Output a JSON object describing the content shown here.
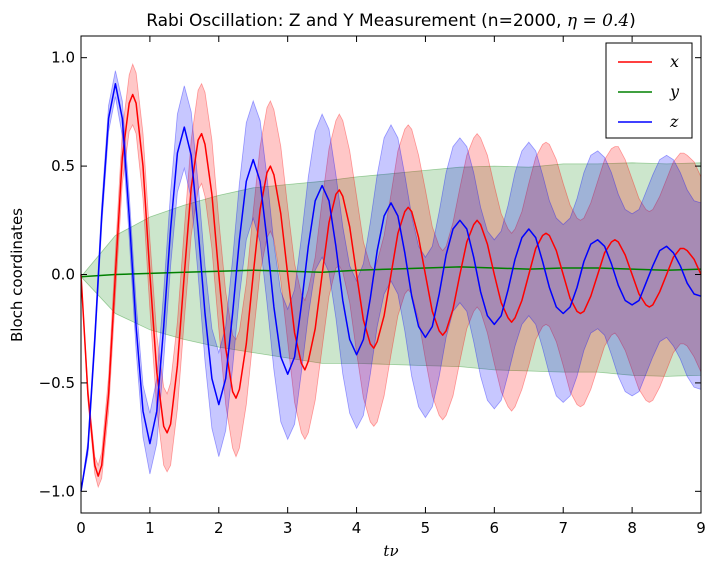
{
  "chart_data": {
    "type": "line",
    "title": {
      "prefix": "Rabi Oscillation: Z and Y Measurement (n=2000, ",
      "math": "η = 0.4",
      "suffix": ")"
    },
    "xlabel": "tν",
    "ylabel": "Bloch coordinates",
    "xlim": [
      0,
      9
    ],
    "ylim": [
      -1.1,
      1.1
    ],
    "xticks": [
      0,
      1,
      2,
      3,
      4,
      5,
      6,
      7,
      8,
      9
    ],
    "yticks": [
      -1.0,
      -0.5,
      0.0,
      0.5,
      1.0
    ],
    "ytick_labels": [
      "−1.0",
      "−0.5",
      "0.0",
      "0.5",
      "1.0"
    ],
    "legend_position": "top-right",
    "grid": false,
    "series": [
      {
        "name": "x",
        "color": "#ff0000",
        "band_color": "#ff0000",
        "x": [
          0,
          0.1,
          0.2,
          0.25,
          0.3,
          0.4,
          0.5,
          0.6,
          0.7,
          0.75,
          0.8,
          0.9,
          1.0,
          1.1,
          1.2,
          1.25,
          1.3,
          1.4,
          1.5,
          1.6,
          1.7,
          1.75,
          1.8,
          1.9,
          2.0,
          2.1,
          2.2,
          2.25,
          2.3,
          2.4,
          2.5,
          2.6,
          2.7,
          2.75,
          2.8,
          2.9,
          3.0,
          3.1,
          3.2,
          3.25,
          3.3,
          3.4,
          3.5,
          3.6,
          3.7,
          3.75,
          3.8,
          3.9,
          4.0,
          4.1,
          4.2,
          4.25,
          4.3,
          4.4,
          4.5,
          4.6,
          4.7,
          4.75,
          4.8,
          4.9,
          5.0,
          5.1,
          5.2,
          5.25,
          5.3,
          5.4,
          5.5,
          5.6,
          5.7,
          5.75,
          5.8,
          5.9,
          6.0,
          6.1,
          6.2,
          6.25,
          6.3,
          6.4,
          6.5,
          6.6,
          6.7,
          6.75,
          6.8,
          6.9,
          7.0,
          7.1,
          7.2,
          7.25,
          7.3,
          7.4,
          7.5,
          7.6,
          7.7,
          7.75,
          7.8,
          7.9,
          8.0,
          8.1,
          8.2,
          8.25,
          8.3,
          8.4,
          8.5,
          8.6,
          8.7,
          8.75,
          8.8,
          8.9,
          9.0
        ],
        "y": [
          0,
          -0.55,
          -0.88,
          -0.93,
          -0.88,
          -0.55,
          0,
          0.54,
          0.79,
          0.83,
          0.79,
          0.5,
          0,
          -0.45,
          -0.7,
          -0.73,
          -0.69,
          -0.42,
          0,
          0.4,
          0.62,
          0.65,
          0.6,
          0.37,
          0,
          -0.34,
          -0.54,
          -0.57,
          -0.53,
          -0.32,
          0,
          0.3,
          0.47,
          0.5,
          0.46,
          0.28,
          0,
          -0.27,
          -0.41,
          -0.44,
          -0.4,
          -0.25,
          0,
          0.24,
          0.37,
          0.39,
          0.36,
          0.22,
          0,
          -0.21,
          -0.32,
          -0.34,
          -0.31,
          -0.19,
          0,
          0.19,
          0.29,
          0.31,
          0.29,
          0.17,
          0,
          -0.17,
          -0.26,
          -0.28,
          -0.26,
          -0.16,
          0,
          0.15,
          0.23,
          0.25,
          0.23,
          0.14,
          0,
          -0.13,
          -0.2,
          -0.22,
          -0.2,
          -0.12,
          0,
          0.12,
          0.18,
          0.19,
          0.18,
          0.11,
          0,
          -0.11,
          -0.17,
          -0.18,
          -0.17,
          -0.1,
          0,
          0.1,
          0.15,
          0.16,
          0.15,
          0.09,
          0,
          -0.09,
          -0.14,
          -0.15,
          -0.14,
          -0.08,
          0,
          0.08,
          0.12,
          0.12,
          0.11,
          0.07,
          0
        ],
        "band": [
          0,
          0.03,
          0.04,
          0.05,
          0.06,
          0.08,
          0.1,
          0.12,
          0.13,
          0.14,
          0.14,
          0.15,
          0.16,
          0.17,
          0.18,
          0.18,
          0.19,
          0.2,
          0.21,
          0.22,
          0.23,
          0.23,
          0.24,
          0.25,
          0.25,
          0.26,
          0.26,
          0.27,
          0.27,
          0.28,
          0.29,
          0.29,
          0.3,
          0.3,
          0.3,
          0.31,
          0.31,
          0.32,
          0.32,
          0.32,
          0.33,
          0.33,
          0.34,
          0.34,
          0.34,
          0.35,
          0.35,
          0.35,
          0.36,
          0.36,
          0.36,
          0.36,
          0.37,
          0.37,
          0.37,
          0.38,
          0.38,
          0.38,
          0.38,
          0.38,
          0.39,
          0.39,
          0.39,
          0.39,
          0.39,
          0.4,
          0.4,
          0.4,
          0.4,
          0.4,
          0.4,
          0.41,
          0.41,
          0.41,
          0.41,
          0.41,
          0.41,
          0.41,
          0.42,
          0.42,
          0.42,
          0.42,
          0.42,
          0.42,
          0.42,
          0.43,
          0.43,
          0.43,
          0.43,
          0.43,
          0.43,
          0.43,
          0.43,
          0.43,
          0.44,
          0.44,
          0.44,
          0.44,
          0.44,
          0.44,
          0.44,
          0.44,
          0.44,
          0.44,
          0.44,
          0.44,
          0.44,
          0.45,
          0.45
        ]
      },
      {
        "name": "y",
        "color": "#008000",
        "band_color": "#008000",
        "x": [
          0,
          0.5,
          1,
          1.5,
          2,
          2.5,
          3,
          3.5,
          4,
          4.5,
          5,
          5.5,
          6,
          6.5,
          7,
          7.5,
          8,
          8.5,
          9
        ],
        "y": [
          -0.01,
          0.0,
          0.005,
          0.01,
          0.015,
          0.02,
          0.015,
          0.01,
          0.02,
          0.025,
          0.03,
          0.035,
          0.03,
          0.025,
          0.03,
          0.03,
          0.025,
          0.02,
          0.025
        ],
        "band": [
          0.0,
          0.18,
          0.26,
          0.31,
          0.35,
          0.38,
          0.4,
          0.42,
          0.43,
          0.44,
          0.45,
          0.46,
          0.47,
          0.47,
          0.48,
          0.48,
          0.49,
          0.49,
          0.49
        ]
      },
      {
        "name": "z",
        "color": "#0000ff",
        "band_color": "#0000ff",
        "x": [
          0,
          0.1,
          0.2,
          0.3,
          0.4,
          0.5,
          0.6,
          0.7,
          0.8,
          0.9,
          1.0,
          1.1,
          1.2,
          1.3,
          1.4,
          1.5,
          1.6,
          1.7,
          1.8,
          1.9,
          2.0,
          2.1,
          2.2,
          2.3,
          2.4,
          2.5,
          2.6,
          2.7,
          2.8,
          2.9,
          3.0,
          3.1,
          3.2,
          3.3,
          3.4,
          3.5,
          3.6,
          3.7,
          3.8,
          3.9,
          4.0,
          4.1,
          4.2,
          4.3,
          4.4,
          4.5,
          4.6,
          4.7,
          4.8,
          4.9,
          5.0,
          5.1,
          5.2,
          5.3,
          5.4,
          5.5,
          5.6,
          5.7,
          5.8,
          5.9,
          6.0,
          6.1,
          6.2,
          6.3,
          6.4,
          6.5,
          6.6,
          6.7,
          6.8,
          6.9,
          7.0,
          7.1,
          7.2,
          7.3,
          7.4,
          7.5,
          7.6,
          7.7,
          7.8,
          7.9,
          8.0,
          8.1,
          8.2,
          8.3,
          8.4,
          8.5,
          8.6,
          8.7,
          8.8,
          8.9,
          9.0
        ],
        "y": [
          -1.0,
          -0.8,
          -0.3,
          0.27,
          0.72,
          0.88,
          0.72,
          0.27,
          -0.24,
          -0.63,
          -0.78,
          -0.63,
          -0.24,
          0.21,
          0.56,
          0.68,
          0.55,
          0.21,
          -0.18,
          -0.48,
          -0.6,
          -0.48,
          -0.18,
          0.16,
          0.43,
          0.53,
          0.43,
          0.16,
          -0.15,
          -0.38,
          -0.46,
          -0.38,
          -0.14,
          0.13,
          0.34,
          0.41,
          0.34,
          0.13,
          -0.12,
          -0.3,
          -0.37,
          -0.3,
          -0.11,
          0.11,
          0.27,
          0.33,
          0.27,
          0.1,
          -0.1,
          -0.24,
          -0.29,
          -0.24,
          -0.09,
          0.09,
          0.21,
          0.25,
          0.21,
          0.08,
          -0.08,
          -0.19,
          -0.23,
          -0.19,
          -0.07,
          0.07,
          0.17,
          0.21,
          0.17,
          0.06,
          -0.06,
          -0.15,
          -0.18,
          -0.15,
          -0.06,
          0.06,
          0.14,
          0.16,
          0.13,
          0.05,
          -0.05,
          -0.12,
          -0.14,
          -0.12,
          -0.04,
          0.04,
          0.11,
          0.13,
          0.1,
          0.04,
          -0.04,
          -0.09,
          -0.1
        ],
        "band": [
          0,
          0.03,
          0.04,
          0.05,
          0.06,
          0.06,
          0.08,
          0.1,
          0.11,
          0.12,
          0.14,
          0.15,
          0.16,
          0.17,
          0.18,
          0.19,
          0.2,
          0.21,
          0.22,
          0.23,
          0.24,
          0.24,
          0.25,
          0.26,
          0.27,
          0.27,
          0.28,
          0.29,
          0.29,
          0.3,
          0.3,
          0.31,
          0.31,
          0.32,
          0.32,
          0.33,
          0.33,
          0.33,
          0.34,
          0.34,
          0.34,
          0.35,
          0.35,
          0.35,
          0.36,
          0.36,
          0.36,
          0.36,
          0.37,
          0.37,
          0.37,
          0.37,
          0.38,
          0.38,
          0.38,
          0.38,
          0.38,
          0.39,
          0.39,
          0.39,
          0.39,
          0.39,
          0.39,
          0.4,
          0.4,
          0.4,
          0.4,
          0.4,
          0.4,
          0.41,
          0.41,
          0.41,
          0.41,
          0.41,
          0.41,
          0.41,
          0.41,
          0.42,
          0.42,
          0.42,
          0.42,
          0.42,
          0.42,
          0.42,
          0.42,
          0.42,
          0.43,
          0.43,
          0.43,
          0.43,
          0.43
        ]
      }
    ]
  }
}
